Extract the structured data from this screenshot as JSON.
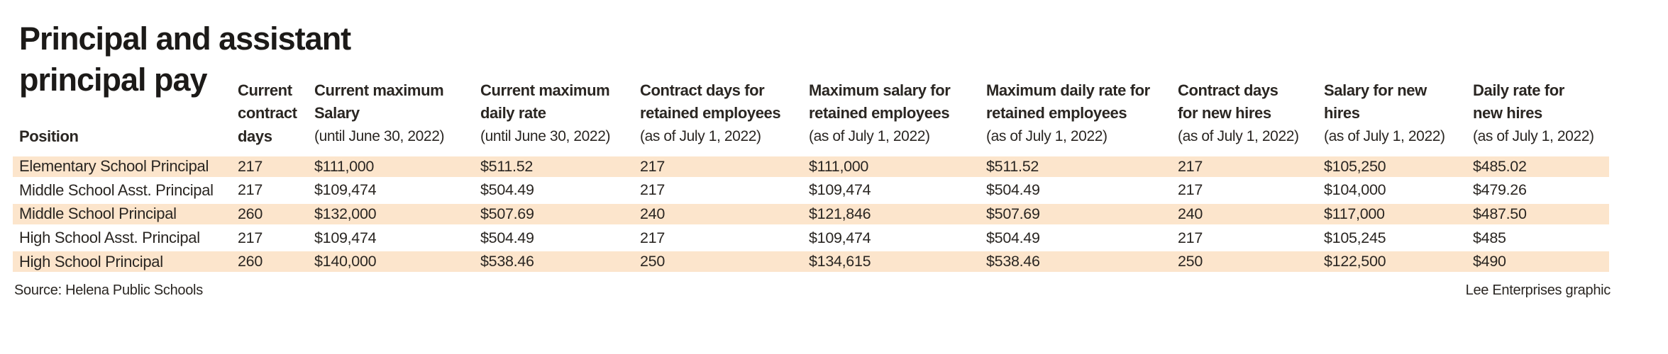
{
  "title": {
    "line1": "Principal and assistant",
    "line2": "principal pay"
  },
  "colors": {
    "stripe": "#fce5cc",
    "text": "#2a2622",
    "title": "#1c1a18",
    "background": "#ffffff"
  },
  "table": {
    "columns": [
      {
        "id": "position",
        "lines": [
          {
            "text": "Position",
            "bold": true
          }
        ]
      },
      {
        "id": "current-contract-days",
        "lines": [
          {
            "text": "Current",
            "bold": true
          },
          {
            "text": "contract",
            "bold": true
          },
          {
            "text": "days",
            "bold": true
          }
        ]
      },
      {
        "id": "current-maximum-salary",
        "lines": [
          {
            "text": "Current maximum",
            "bold": true
          },
          {
            "text": "Salary",
            "bold": true
          },
          {
            "text": "(until June 30, 2022)",
            "bold": false
          }
        ]
      },
      {
        "id": "current-maximum-daily-rate",
        "lines": [
          {
            "text": "Current maximum",
            "bold": true
          },
          {
            "text": "daily rate",
            "bold": true
          },
          {
            "text": "(until June 30, 2022)",
            "bold": false
          }
        ]
      },
      {
        "id": "contract-days-retained",
        "lines": [
          {
            "text": "Contract days for",
            "bold": true
          },
          {
            "text": "retained employees",
            "bold": true
          },
          {
            "text": "(as of July 1, 2022)",
            "bold": false
          }
        ]
      },
      {
        "id": "maximum-salary-retained",
        "lines": [
          {
            "text": "Maximum salary for",
            "bold": true
          },
          {
            "text": "retained employees",
            "bold": true
          },
          {
            "text": "(as of July 1, 2022)",
            "bold": false
          }
        ]
      },
      {
        "id": "maximum-daily-rate-retained",
        "lines": [
          {
            "text": "Maximum daily rate for",
            "bold": true
          },
          {
            "text": "retained employees",
            "bold": true
          },
          {
            "text": "(as of July 1, 2022)",
            "bold": false
          }
        ]
      },
      {
        "id": "contract-days-new-hires",
        "lines": [
          {
            "text": "Contract days",
            "bold": true
          },
          {
            "text": "for new hires",
            "bold": true
          },
          {
            "text": "(as of July 1, 2022)",
            "bold": false
          }
        ]
      },
      {
        "id": "salary-new-hires",
        "lines": [
          {
            "text": "Salary for new",
            "bold": true
          },
          {
            "text": "hires",
            "bold": true
          },
          {
            "text": "(as of July 1, 2022)",
            "bold": false
          }
        ]
      },
      {
        "id": "daily-rate-new-hires",
        "lines": [
          {
            "text": "Daily rate for",
            "bold": true
          },
          {
            "text": "new hires",
            "bold": true
          },
          {
            "text": "(as of July 1, 2022)",
            "bold": false
          }
        ]
      }
    ],
    "rows": [
      {
        "position": "Elementary School Principal",
        "striped": true,
        "values": [
          "217",
          "$111,000",
          "$511.52",
          "217",
          "$111,000",
          "$511.52",
          "217",
          "$105,250",
          "$485.02"
        ]
      },
      {
        "position": "Middle School Asst. Principal",
        "striped": false,
        "values": [
          "217",
          "$109,474",
          "$504.49",
          "217",
          "$109,474",
          "$504.49",
          "217",
          "$104,000",
          "$479.26"
        ]
      },
      {
        "position": "Middle School Principal",
        "striped": true,
        "values": [
          "260",
          "$132,000",
          "$507.69",
          "240",
          "$121,846",
          "$507.69",
          "240",
          "$117,000",
          "$487.50"
        ]
      },
      {
        "position": "High School Asst. Principal",
        "striped": false,
        "values": [
          "217",
          "$109,474",
          "$504.49",
          "217",
          "$109,474",
          "$504.49",
          "217",
          "$105,245",
          "$485"
        ]
      },
      {
        "position": "High School Principal",
        "striped": true,
        "values": [
          "260",
          "$140,000",
          "$538.46",
          "250",
          "$134,615",
          "$538.46",
          "250",
          "$122,500",
          "$490"
        ]
      }
    ]
  },
  "footer": {
    "source": "Source: Helena Public Schools",
    "credit": "Lee Enterprises graphic"
  },
  "chart_data": {
    "type": "table",
    "title": "Principal and assistant principal pay",
    "columns": [
      "Position",
      "Current contract days",
      "Current maximum Salary (until June 30, 2022)",
      "Current maximum daily rate (until June 30, 2022)",
      "Contract days for retained employees (as of July 1, 2022)",
      "Maximum salary for retained employees (as of July 1, 2022)",
      "Maximum daily rate for retained employees (as of July 1, 2022)",
      "Contract days for new hires (as of July 1, 2022)",
      "Salary for new hires (as of July 1, 2022)",
      "Daily rate for new hires (as of July 1, 2022)"
    ],
    "rows": [
      [
        "Elementary School Principal",
        217,
        111000,
        511.52,
        217,
        111000,
        511.52,
        217,
        105250,
        485.02
      ],
      [
        "Middle School Asst. Principal",
        217,
        109474,
        504.49,
        217,
        109474,
        504.49,
        217,
        104000,
        479.26
      ],
      [
        "Middle School Principal",
        260,
        132000,
        507.69,
        240,
        121846,
        507.69,
        240,
        117000,
        487.5
      ],
      [
        "High School Asst. Principal",
        217,
        109474,
        504.49,
        217,
        109474,
        504.49,
        217,
        105245,
        485
      ],
      [
        "High School Principal",
        260,
        140000,
        538.46,
        250,
        134615,
        538.46,
        250,
        122500,
        490
      ]
    ],
    "source": "Source: Helena Public Schools",
    "credit": "Lee Enterprises graphic"
  }
}
